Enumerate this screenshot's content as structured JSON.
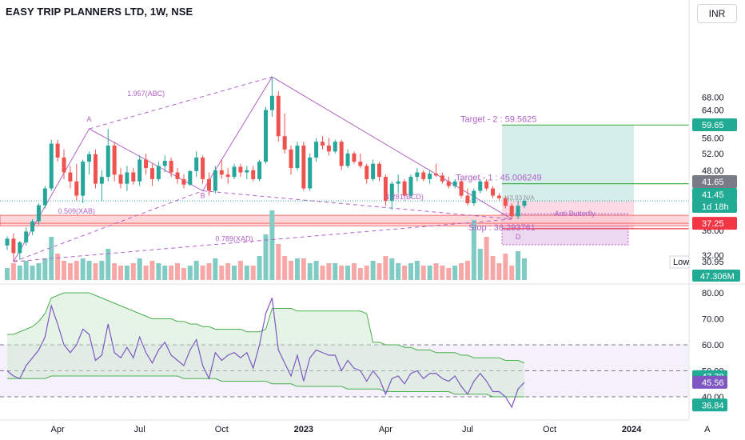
{
  "header": {
    "symbol_title": "EASY TRIP PLANNERS LTD, 1W, NSE",
    "currency_button": "INR"
  },
  "colors": {
    "bull": "#26a69a",
    "bear": "#ef5350",
    "pattern": "#b162c6",
    "target_line": "#4caf50",
    "rsi_line": "#7e57c2",
    "band_line": "#4caf50",
    "stop_line": "#f23645",
    "tag_green": "#22ab94",
    "tag_red": "#f23645",
    "tag_gray": "#787b86",
    "tag_dark": "#131722",
    "tag_purple": "#7e57c2"
  },
  "chart_data": [
    {
      "type": "candlestick",
      "title": "EASY TRIP PLANNERS LTD, 1W, NSE",
      "x_axis": {
        "type": "time",
        "tick_labels": [
          "Apr",
          "Jul",
          "Oct",
          "2023",
          "Apr",
          "Jul",
          "Oct",
          "2024",
          "A"
        ],
        "tick_weeks": [
          8,
          21,
          34,
          47,
          60,
          73,
          86,
          99,
          111
        ]
      },
      "y_axis": {
        "scale": "log",
        "ticks": [
          32.0,
          36.0,
          40.0,
          44.0,
          48.0,
          52.0,
          56.0,
          60.0,
          64.0,
          68.0
        ],
        "range": [
          30.0,
          72.0
        ]
      },
      "ohlc_weekly": [
        [
          33.5,
          35.0,
          32.8,
          34.6
        ],
        [
          34.6,
          35.5,
          31.0,
          32.3
        ],
        [
          32.3,
          34.2,
          31.3,
          34.0
        ],
        [
          34.0,
          36.5,
          33.5,
          35.8
        ],
        [
          35.8,
          38.0,
          35.2,
          37.6
        ],
        [
          37.6,
          41.0,
          37.0,
          40.6
        ],
        [
          40.6,
          44.5,
          40.0,
          44.0
        ],
        [
          44.0,
          55.5,
          43.5,
          54.5
        ],
        [
          54.5,
          55.5,
          50.0,
          51.0
        ],
        [
          51.0,
          53.0,
          46.0,
          47.5
        ],
        [
          47.5,
          49.0,
          44.0,
          45.5
        ],
        [
          45.5,
          49.5,
          41.5,
          42.5
        ],
        [
          42.5,
          50.5,
          41.0,
          50.0
        ],
        [
          50.0,
          52.5,
          47.0,
          51.8
        ],
        [
          51.8,
          53.0,
          44.0,
          45.0
        ],
        [
          45.0,
          48.0,
          41.5,
          46.5
        ],
        [
          46.5,
          58.5,
          45.5,
          54.0
        ],
        [
          54.0,
          55.0,
          45.5,
          47.0
        ],
        [
          47.0,
          48.5,
          44.0,
          45.0
        ],
        [
          45.0,
          49.0,
          43.5,
          47.5
        ],
        [
          47.5,
          48.5,
          44.8,
          45.5
        ],
        [
          45.5,
          51.5,
          44.5,
          50.5
        ],
        [
          50.5,
          52.0,
          47.0,
          48.5
        ],
        [
          48.5,
          49.5,
          44.5,
          46.0
        ],
        [
          46.0,
          50.0,
          45.5,
          49.0
        ],
        [
          49.0,
          51.5,
          47.5,
          50.2
        ],
        [
          50.2,
          51.0,
          46.5,
          47.5
        ],
        [
          47.5,
          48.5,
          45.0,
          46.0
        ],
        [
          46.0,
          47.0,
          44.0,
          44.8
        ],
        [
          44.8,
          48.0,
          44.5,
          47.8
        ],
        [
          47.8,
          52.5,
          46.5,
          51.0
        ],
        [
          51.0,
          51.5,
          45.0,
          46.0
        ],
        [
          46.0,
          47.5,
          42.5,
          43.5
        ],
        [
          43.5,
          49.0,
          43.0,
          48.0
        ],
        [
          48.0,
          50.5,
          46.0,
          47.0
        ],
        [
          47.0,
          48.5,
          45.0,
          46.5
        ],
        [
          46.5,
          49.5,
          46.0,
          48.8
        ],
        [
          48.8,
          49.5,
          46.5,
          47.5
        ],
        [
          47.5,
          49.0,
          46.0,
          48.0
        ],
        [
          48.0,
          49.0,
          45.5,
          46.0
        ],
        [
          46.0,
          50.5,
          45.5,
          50.0
        ],
        [
          50.0,
          65.0,
          49.5,
          64.0
        ],
        [
          64.0,
          75.0,
          62.0,
          68.5
        ],
        [
          68.5,
          70.0,
          55.0,
          56.5
        ],
        [
          56.5,
          63.0,
          52.0,
          53.0
        ],
        [
          53.0,
          54.0,
          47.0,
          48.5
        ],
        [
          48.5,
          55.0,
          48.0,
          54.0
        ],
        [
          54.0,
          55.0,
          43.5,
          44.0
        ],
        [
          44.0,
          52.0,
          43.5,
          51.0
        ],
        [
          51.0,
          56.0,
          50.0,
          55.0
        ],
        [
          55.0,
          56.5,
          53.0,
          54.0
        ],
        [
          54.0,
          56.0,
          51.5,
          52.5
        ],
        [
          52.5,
          55.5,
          52.0,
          55.0
        ],
        [
          55.0,
          55.5,
          48.0,
          49.0
        ],
        [
          49.0,
          53.0,
          48.5,
          52.0
        ],
        [
          52.0,
          52.5,
          49.5,
          50.0
        ],
        [
          50.0,
          52.0,
          48.5,
          49.0
        ],
        [
          49.0,
          49.5,
          45.0,
          46.0
        ],
        [
          46.0,
          50.5,
          45.5,
          49.5
        ],
        [
          49.5,
          50.0,
          45.5,
          46.5
        ],
        [
          46.5,
          47.0,
          40.5,
          41.5
        ],
        [
          41.5,
          45.5,
          39.8,
          45.0
        ],
        [
          45.0,
          47.0,
          43.0,
          45.5
        ],
        [
          45.5,
          46.0,
          42.0,
          42.5
        ],
        [
          42.5,
          47.0,
          42.0,
          46.5
        ],
        [
          46.5,
          48.5,
          45.5,
          47.5
        ],
        [
          47.5,
          48.0,
          45.5,
          46.0
        ],
        [
          46.0,
          48.0,
          45.0,
          47.2
        ],
        [
          47.2,
          49.5,
          46.5,
          46.8
        ],
        [
          46.8,
          47.5,
          45.0,
          45.5
        ],
        [
          45.5,
          46.5,
          44.0,
          44.5
        ],
        [
          44.5,
          46.0,
          44.0,
          45.5
        ],
        [
          45.5,
          46.0,
          42.0,
          42.5
        ],
        [
          42.5,
          44.0,
          40.5,
          41.0
        ],
        [
          41.0,
          44.0,
          40.5,
          43.5
        ],
        [
          43.5,
          46.0,
          43.0,
          45.5
        ],
        [
          45.5,
          46.0,
          43.5,
          44.0
        ],
        [
          44.0,
          44.5,
          42.0,
          42.5
        ],
        [
          42.5,
          43.0,
          41.5,
          42.0
        ],
        [
          42.0,
          42.5,
          40.0,
          40.5
        ],
        [
          40.5,
          41.0,
          38.0,
          38.5
        ],
        [
          38.5,
          41.5,
          38.0,
          40.5
        ],
        [
          40.5,
          42.0,
          40.0,
          41.45
        ]
      ],
      "volume_weekly": [
        5,
        7,
        6,
        8,
        6,
        7,
        9,
        18,
        11,
        8,
        7,
        8,
        9,
        8,
        7,
        8,
        13,
        7,
        6,
        6,
        7,
        9,
        6,
        8,
        7,
        6,
        6,
        7,
        5,
        6,
        8,
        6,
        7,
        9,
        6,
        7,
        6,
        8,
        6,
        6,
        10,
        19,
        29,
        15,
        10,
        8,
        9,
        9,
        7,
        8,
        6,
        7,
        7,
        6,
        6,
        7,
        5,
        6,
        8,
        7,
        10,
        9,
        7,
        6,
        7,
        8,
        6,
        6,
        7,
        6,
        5,
        6,
        7,
        8,
        25,
        13,
        18,
        10,
        7,
        11,
        6,
        12,
        9
      ],
      "rsi_weekly": [
        50,
        48,
        47,
        52,
        55,
        58,
        63,
        75,
        68,
        60,
        57,
        60,
        66,
        64,
        54,
        56,
        68,
        57,
        55,
        59,
        55,
        63,
        57,
        53,
        58,
        61,
        56,
        54,
        52,
        58,
        62,
        52,
        47,
        57,
        54,
        56,
        57,
        55,
        57,
        51,
        60,
        72,
        78,
        58,
        53,
        48,
        56,
        46,
        55,
        58,
        57,
        56,
        56,
        50,
        54,
        51,
        50,
        46,
        50,
        47,
        41,
        47,
        48,
        45,
        49,
        50,
        47,
        49,
        49,
        47,
        46,
        48,
        44,
        41,
        46,
        49,
        46,
        42,
        42,
        40,
        36,
        43,
        45.56
      ],
      "rsi_upper_band": [
        64,
        64,
        65,
        66,
        67,
        69,
        72,
        78,
        79,
        80,
        80,
        80,
        80,
        80,
        79,
        78,
        77,
        76,
        75,
        74,
        73,
        72,
        71,
        70,
        70,
        70,
        70,
        69,
        69,
        68,
        68,
        67,
        67,
        66,
        66,
        66,
        66,
        66,
        65,
        65,
        65,
        66,
        74,
        74,
        74,
        74,
        73,
        73,
        73,
        73,
        73,
        73,
        73,
        73,
        73,
        73,
        73,
        72,
        61,
        61,
        60,
        60,
        60,
        59,
        59,
        58,
        58,
        58,
        57,
        57,
        57,
        57,
        56,
        56,
        55,
        55,
        55,
        55,
        55,
        54,
        54,
        54,
        53
      ],
      "rsi_lower_band": [
        47,
        47,
        47,
        47,
        47,
        47,
        47,
        48,
        48,
        48,
        48,
        48,
        48,
        48,
        48,
        48,
        48,
        48,
        48,
        48,
        48,
        48,
        48,
        48,
        48,
        48,
        48,
        48,
        47,
        47,
        47,
        47,
        47,
        47,
        46,
        46,
        46,
        46,
        46,
        46,
        46,
        46,
        45,
        45,
        45,
        45,
        44,
        44,
        44,
        44,
        44,
        44,
        44,
        44,
        43,
        43,
        43,
        43,
        43,
        43,
        42,
        42,
        42,
        42,
        42,
        42,
        42,
        42,
        42,
        42,
        42,
        41,
        41,
        41,
        41,
        41,
        41,
        40,
        40,
        40,
        40,
        40,
        40
      ],
      "rsi_axis": {
        "ticks": [
          40.0,
          50.0,
          60.0,
          70.0,
          80.0
        ],
        "dashed_levels": [
          40,
          50,
          60
        ]
      },
      "pattern_points": [
        {
          "label": "A",
          "week": 13,
          "price": 58.5
        },
        {
          "label": "B",
          "week": 31,
          "price": 43.5
        },
        {
          "label": "C",
          "week": 42,
          "price": 75.0
        },
        {
          "label": "D",
          "week": 80,
          "price": 38.0
        }
      ],
      "pattern_start": {
        "week": 1,
        "price": 31.0
      },
      "pattern_ratio_labels": [
        {
          "text": "1.957(ABC)",
          "week": 22,
          "price": 68.5
        },
        {
          "text": "0.509(XAB)",
          "week": 11,
          "price": 39.0
        },
        {
          "text": "0.789(XAD)",
          "week": 36,
          "price": 34.2
        },
        {
          "text": "4.281(BCD)",
          "week": 63,
          "price": 41.8
        },
        {
          "text": "Anti Butterfly",
          "week": 90,
          "price": 38.6
        }
      ],
      "pattern_letter_labels": [
        {
          "text": "A",
          "week": 13,
          "price": 60.5
        },
        {
          "text": "B",
          "week": 31,
          "price": 42.0
        },
        {
          "text": "D",
          "week": 81,
          "price": 34.5
        }
      ],
      "targets": [
        {
          "text": "Target - 2 : 59.5625",
          "price": 59.5625
        },
        {
          "text": "Target - 1 : 45.006249",
          "price": 45.006249
        },
        {
          "text": "Stop : 36.293761",
          "price": 36.293761
        }
      ],
      "right_axis_tags": [
        {
          "text": "59.65",
          "price": 59.65,
          "style": "green"
        },
        {
          "text": "41.65",
          "price": 41.65,
          "style": "gray"
        },
        {
          "text": "41.45",
          "price": 41.45,
          "style": "green"
        },
        {
          "text": "1d 18h",
          "price": 41.45,
          "style": "green_sub"
        },
        {
          "text": "37.25",
          "price": 37.25,
          "style": "red"
        }
      ],
      "low_label": {
        "text": "Low",
        "value": "30.95"
      },
      "volume_tag": "47.306M",
      "rsi_tags": [
        {
          "text": "47.78",
          "value": 47.78,
          "style": "green"
        },
        {
          "text": "45.56",
          "value": 45.56,
          "style": "purple"
        },
        {
          "text": "36.84",
          "value": 36.84,
          "style": "green"
        }
      ],
      "mini_label": "43.93 N/A"
    }
  ]
}
